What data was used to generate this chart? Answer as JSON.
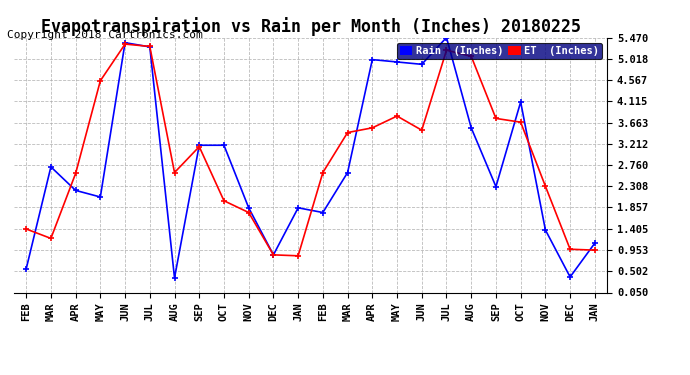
{
  "title": "Evapotranspiration vs Rain per Month (Inches) 20180225",
  "copyright": "Copyright 2018 Cartronics.com",
  "months": [
    "FEB",
    "MAR",
    "APR",
    "MAY",
    "JUN",
    "JUL",
    "AUG",
    "SEP",
    "OCT",
    "NOV",
    "DEC",
    "JAN",
    "FEB",
    "MAR",
    "APR",
    "MAY",
    "JUN",
    "JUL",
    "AUG",
    "SEP",
    "OCT",
    "NOV",
    "DEC",
    "JAN"
  ],
  "rain_inches": [
    0.55,
    2.72,
    2.22,
    2.08,
    5.36,
    5.27,
    0.36,
    3.18,
    3.18,
    1.85,
    0.85,
    1.85,
    1.75,
    2.6,
    5.0,
    4.95,
    4.9,
    5.47,
    3.55,
    2.3,
    4.1,
    1.38,
    0.38,
    1.1
  ],
  "et_inches": [
    1.4,
    1.2,
    2.58,
    4.55,
    5.33,
    5.28,
    2.6,
    3.15,
    2.0,
    1.75,
    0.85,
    0.83,
    2.6,
    3.45,
    3.55,
    3.8,
    3.5,
    5.2,
    5.07,
    3.75,
    3.67,
    2.31,
    0.97,
    0.95
  ],
  "rain_color": "#0000ff",
  "et_color": "#ff0000",
  "yticks": [
    0.05,
    0.502,
    0.953,
    1.405,
    1.857,
    2.308,
    2.76,
    3.212,
    3.663,
    4.115,
    4.567,
    5.018,
    5.47
  ],
  "ylim": [
    0.05,
    5.47
  ],
  "bg_color": "#ffffff",
  "grid_color": "#aaaaaa",
  "title_fontsize": 12,
  "copyright_fontsize": 8,
  "legend_rain_label": "Rain  (Inches)",
  "legend_et_label": "ET  (Inches)"
}
